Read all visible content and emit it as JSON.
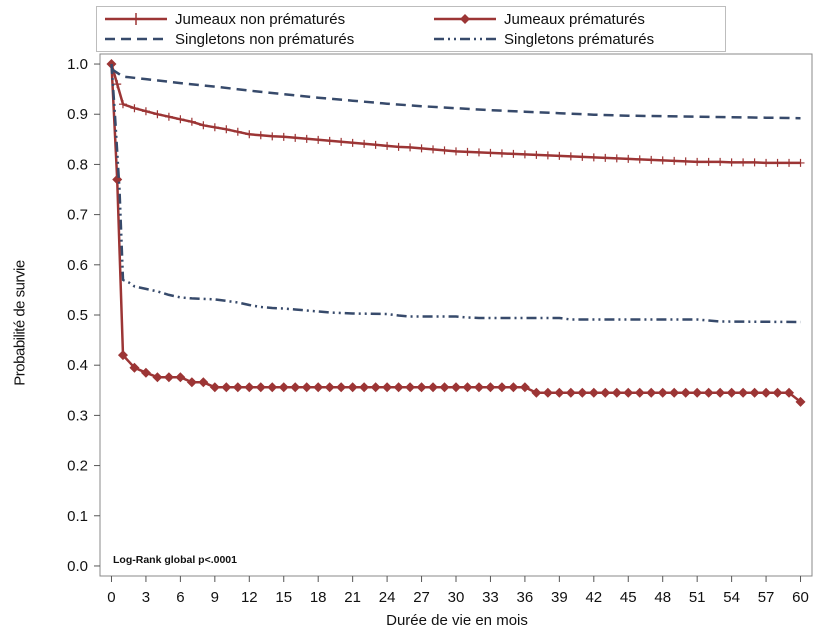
{
  "chart_data": {
    "type": "line",
    "xlabel": "Durée de vie en mois",
    "ylabel": "Probabilité de survie",
    "xlim": [
      -1,
      61
    ],
    "ylim": [
      -0.02,
      1.02
    ],
    "xticks": [
      "0",
      "3",
      "6",
      "9",
      "12",
      "15",
      "18",
      "21",
      "24",
      "27",
      "30",
      "33",
      "36",
      "39",
      "42",
      "45",
      "48",
      "51",
      "54",
      "57",
      "60"
    ],
    "yticks": [
      "0.0",
      "0.1",
      "0.2",
      "0.3",
      "0.4",
      "0.5",
      "0.6",
      "0.7",
      "0.8",
      "0.9",
      "1.0"
    ],
    "annotation": "Log-Rank global p<.0001",
    "legend_position": "top",
    "series": [
      {
        "name": "Jumeaux non prématurés",
        "color": "#9c3535",
        "style": "solid-plus",
        "points": [
          [
            0,
            1.0
          ],
          [
            0.5,
            0.96
          ],
          [
            1,
            0.92
          ],
          [
            2,
            0.912
          ],
          [
            3,
            0.906
          ],
          [
            4,
            0.9
          ],
          [
            5,
            0.895
          ],
          [
            6,
            0.89
          ],
          [
            7,
            0.885
          ],
          [
            8,
            0.878
          ],
          [
            9,
            0.874
          ],
          [
            10,
            0.87
          ],
          [
            11,
            0.865
          ],
          [
            12,
            0.86
          ],
          [
            13,
            0.858
          ],
          [
            14,
            0.856
          ],
          [
            15,
            0.855
          ],
          [
            16,
            0.853
          ],
          [
            17,
            0.851
          ],
          [
            18,
            0.849
          ],
          [
            19,
            0.847
          ],
          [
            20,
            0.845
          ],
          [
            21,
            0.843
          ],
          [
            22,
            0.841
          ],
          [
            23,
            0.839
          ],
          [
            24,
            0.837
          ],
          [
            25,
            0.835
          ],
          [
            26,
            0.834
          ],
          [
            27,
            0.832
          ],
          [
            28,
            0.83
          ],
          [
            29,
            0.828
          ],
          [
            30,
            0.826
          ],
          [
            31,
            0.825
          ],
          [
            32,
            0.824
          ],
          [
            33,
            0.823
          ],
          [
            34,
            0.822
          ],
          [
            35,
            0.821
          ],
          [
            36,
            0.82
          ],
          [
            37,
            0.819
          ],
          [
            38,
            0.818
          ],
          [
            39,
            0.817
          ],
          [
            40,
            0.816
          ],
          [
            41,
            0.815
          ],
          [
            42,
            0.814
          ],
          [
            43,
            0.813
          ],
          [
            44,
            0.812
          ],
          [
            45,
            0.811
          ],
          [
            46,
            0.81
          ],
          [
            47,
            0.809
          ],
          [
            48,
            0.808
          ],
          [
            49,
            0.807
          ],
          [
            50,
            0.806
          ],
          [
            51,
            0.805
          ],
          [
            52,
            0.805
          ],
          [
            53,
            0.805
          ],
          [
            54,
            0.804
          ],
          [
            55,
            0.804
          ],
          [
            56,
            0.804
          ],
          [
            57,
            0.803
          ],
          [
            58,
            0.803
          ],
          [
            59,
            0.803
          ],
          [
            60,
            0.803
          ]
        ]
      },
      {
        "name": "Jumeaux prématurés",
        "color": "#9c3535",
        "style": "solid-diamond",
        "points": [
          [
            0,
            1.0
          ],
          [
            0.5,
            0.77
          ],
          [
            1,
            0.42
          ],
          [
            2,
            0.395
          ],
          [
            3,
            0.385
          ],
          [
            4,
            0.376
          ],
          [
            5,
            0.376
          ],
          [
            6,
            0.376
          ],
          [
            7,
            0.366
          ],
          [
            8,
            0.366
          ],
          [
            9,
            0.356
          ],
          [
            10,
            0.356
          ],
          [
            11,
            0.356
          ],
          [
            12,
            0.356
          ],
          [
            13,
            0.356
          ],
          [
            14,
            0.356
          ],
          [
            15,
            0.356
          ],
          [
            16,
            0.356
          ],
          [
            17,
            0.356
          ],
          [
            18,
            0.356
          ],
          [
            19,
            0.356
          ],
          [
            20,
            0.356
          ],
          [
            21,
            0.356
          ],
          [
            22,
            0.356
          ],
          [
            23,
            0.356
          ],
          [
            24,
            0.356
          ],
          [
            25,
            0.356
          ],
          [
            26,
            0.356
          ],
          [
            27,
            0.356
          ],
          [
            28,
            0.356
          ],
          [
            29,
            0.356
          ],
          [
            30,
            0.356
          ],
          [
            31,
            0.356
          ],
          [
            32,
            0.356
          ],
          [
            33,
            0.356
          ],
          [
            34,
            0.356
          ],
          [
            35,
            0.356
          ],
          [
            36,
            0.356
          ],
          [
            37,
            0.345
          ],
          [
            38,
            0.345
          ],
          [
            39,
            0.345
          ],
          [
            40,
            0.345
          ],
          [
            41,
            0.345
          ],
          [
            42,
            0.345
          ],
          [
            43,
            0.345
          ],
          [
            44,
            0.345
          ],
          [
            45,
            0.345
          ],
          [
            46,
            0.345
          ],
          [
            47,
            0.345
          ],
          [
            48,
            0.345
          ],
          [
            49,
            0.345
          ],
          [
            50,
            0.345
          ],
          [
            51,
            0.345
          ],
          [
            52,
            0.345
          ],
          [
            53,
            0.345
          ],
          [
            54,
            0.345
          ],
          [
            55,
            0.345
          ],
          [
            56,
            0.345
          ],
          [
            57,
            0.345
          ],
          [
            58,
            0.345
          ],
          [
            59,
            0.345
          ],
          [
            60,
            0.327
          ]
        ]
      },
      {
        "name": "Singletons non prématurés",
        "color": "#374a6b",
        "style": "dashed",
        "points": [
          [
            0,
            0.99
          ],
          [
            1,
            0.975
          ],
          [
            3,
            0.97
          ],
          [
            6,
            0.962
          ],
          [
            9,
            0.955
          ],
          [
            12,
            0.947
          ],
          [
            15,
            0.94
          ],
          [
            18,
            0.933
          ],
          [
            21,
            0.927
          ],
          [
            24,
            0.921
          ],
          [
            27,
            0.916
          ],
          [
            30,
            0.912
          ],
          [
            33,
            0.908
          ],
          [
            36,
            0.905
          ],
          [
            39,
            0.902
          ],
          [
            42,
            0.899
          ],
          [
            45,
            0.897
          ],
          [
            48,
            0.896
          ],
          [
            51,
            0.895
          ],
          [
            54,
            0.894
          ],
          [
            57,
            0.893
          ],
          [
            60,
            0.892
          ]
        ]
      },
      {
        "name": "Singletons prématurés",
        "color": "#374a6b",
        "style": "dashdot",
        "points": [
          [
            0,
            1.0
          ],
          [
            0.3,
            0.9
          ],
          [
            0.7,
            0.75
          ],
          [
            1,
            0.57
          ],
          [
            1.5,
            0.565
          ],
          [
            2,
            0.557
          ],
          [
            3,
            0.552
          ],
          [
            4,
            0.547
          ],
          [
            5,
            0.54
          ],
          [
            6,
            0.535
          ],
          [
            7,
            0.533
          ],
          [
            8,
            0.532
          ],
          [
            9,
            0.531
          ],
          [
            10,
            0.528
          ],
          [
            11,
            0.525
          ],
          [
            12,
            0.52
          ],
          [
            13,
            0.516
          ],
          [
            14,
            0.514
          ],
          [
            15,
            0.513
          ],
          [
            16,
            0.511
          ],
          [
            17,
            0.509
          ],
          [
            18,
            0.507
          ],
          [
            19,
            0.505
          ],
          [
            20,
            0.504
          ],
          [
            21,
            0.503
          ],
          [
            24,
            0.502
          ],
          [
            25,
            0.499
          ],
          [
            26,
            0.497
          ],
          [
            30,
            0.497
          ],
          [
            31,
            0.495
          ],
          [
            32,
            0.494
          ],
          [
            39,
            0.494
          ],
          [
            40,
            0.491
          ],
          [
            51,
            0.491
          ],
          [
            52,
            0.489
          ],
          [
            53,
            0.487
          ],
          [
            60,
            0.486
          ]
        ]
      }
    ]
  }
}
